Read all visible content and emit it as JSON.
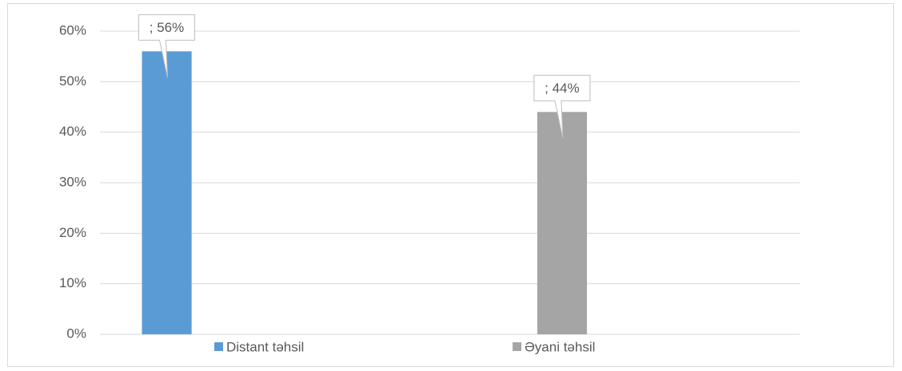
{
  "chart_data": {
    "type": "bar",
    "categories": [
      null,
      null
    ],
    "series": [
      {
        "name": "Distant təhsil",
        "color": "#5b9bd5",
        "values": [
          56,
          null
        ],
        "value_labels": [
          "; 56%",
          null
        ]
      },
      {
        "name": "Əyani təhsil",
        "color": "#a5a5a5",
        "values": [
          null,
          44
        ],
        "value_labels": [
          null,
          "; 44%"
        ]
      }
    ],
    "ylim": [
      0,
      60
    ],
    "yticks": [
      {
        "value": 0,
        "label": "0%"
      },
      {
        "value": 10,
        "label": "10%"
      },
      {
        "value": 20,
        "label": "20%"
      },
      {
        "value": 30,
        "label": "30%"
      },
      {
        "value": 40,
        "label": "40%"
      },
      {
        "value": 50,
        "label": "50%"
      },
      {
        "value": 60,
        "label": "60%"
      }
    ],
    "grid": true,
    "legend": "bottom"
  }
}
